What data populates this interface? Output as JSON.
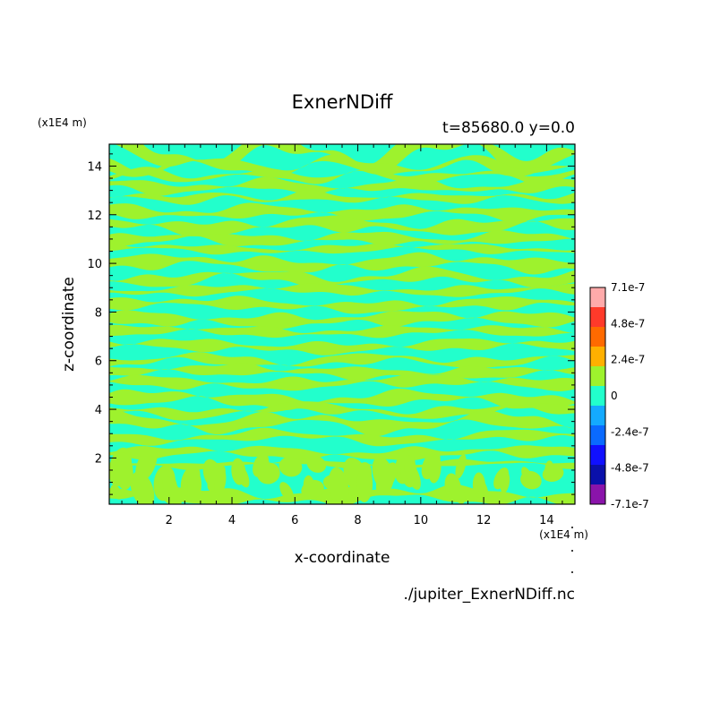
{
  "chart_data": {
    "type": "heatmap",
    "title": "ExnerNDiff",
    "subtitle": "t=85680.0 y=0.0",
    "xlabel": "x-coordinate",
    "ylabel": "z-coordinate",
    "x_unit": "(x1E4 m)",
    "y_unit": "(x1E4 m)",
    "xlim": [
      0.1,
      14.9
    ],
    "ylim": [
      0.1,
      14.9
    ],
    "x_ticks": [
      2,
      4,
      6,
      8,
      10,
      12,
      14
    ],
    "y_ticks": [
      2,
      4,
      6,
      8,
      10,
      12,
      14
    ],
    "x_tick_labels": [
      "2",
      "4",
      "6",
      "8",
      "10",
      "12",
      "14"
    ],
    "y_tick_labels": [
      "2",
      "4",
      "6",
      "8",
      "10",
      "12",
      "14"
    ],
    "colorbar": {
      "labels": [
        "7.1e-7",
        "4.8e-7",
        "2.4e-7",
        "0",
        "-2.4e-7",
        "-4.8e-7",
        "-7.1e-7"
      ],
      "colors": [
        "#ffaaaa",
        "#ff3a2a",
        "#ff6a00",
        "#ffb000",
        "#9ef22d",
        "#22ffcc",
        "#14aaff",
        "#0a6aff",
        "#1010ff",
        "#0a10aa",
        "#8a14aa"
      ]
    },
    "field_colors": {
      "positive": "#9ef22d",
      "negative": "#22ffcc"
    },
    "footer": "./jupiter_ExnerNDiff.nc"
  }
}
